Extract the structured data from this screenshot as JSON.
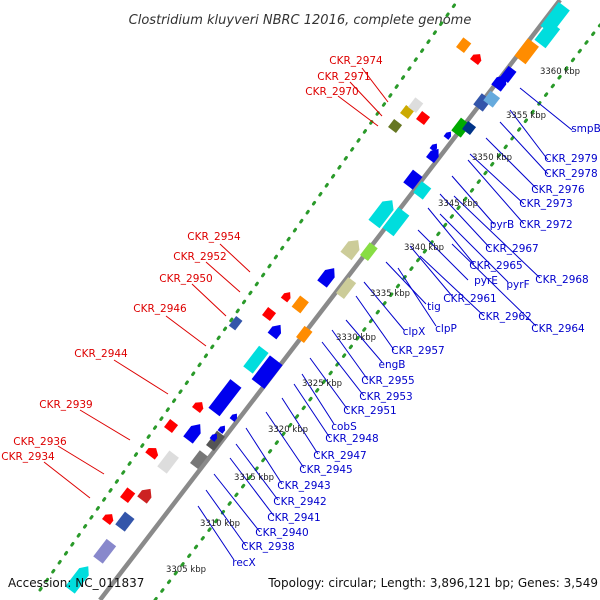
{
  "title": "Clostridium kluyveri NBRC 12016, complete genome",
  "accession": "Accession: NC_011837",
  "summary": "Topology: circular; Length: 3,896,121 bp; Genes: 3,549",
  "colors": {
    "backbone": "#7a7a7a",
    "tick_dots": "#2a9a2a",
    "label_upper": "#dd0000",
    "label_lower": "#0000cc",
    "leader_upper": "#dd0000",
    "leader_lower": "#0000cc"
  },
  "kbp_labels": [
    "3305 kbp",
    "3310 kbp",
    "3315 kbp",
    "3320 kbp",
    "3325 kbp",
    "3330 kbp",
    "3335 kbp",
    "3340 kbp",
    "3345 kbp",
    "3350 kbp",
    "3355 kbp",
    "3360 kbp"
  ],
  "upper_labels": [
    "CKR_2974",
    "CKR_2971",
    "CKR_2970",
    "CKR_2954",
    "CKR_2952",
    "CKR_2950",
    "CKR_2946",
    "CKR_2944",
    "CKR_2939",
    "CKR_2936",
    "CKR_2934"
  ],
  "lower_labels": [
    "smpB",
    "CKR_2979",
    "CKR_2978",
    "CKR_2976",
    "CKR_2973",
    "pyrB",
    "CKR_2972",
    "CKR_2967",
    "CKR_2965",
    "pyrF",
    "CKR_2968",
    "pyrE",
    "CKR_2961",
    "tig",
    "clpP",
    "CKR_2962",
    "CKR_2964",
    "clpX",
    "CKR_2957",
    "engB",
    "CKR_2955",
    "CKR_2953",
    "CKR_2951",
    "cobS",
    "CKR_2948",
    "CKR_2947",
    "CKR_2945",
    "CKR_2943",
    "CKR_2942",
    "CKR_2941",
    "CKR_2940",
    "CKR_2938",
    "recX"
  ]
}
